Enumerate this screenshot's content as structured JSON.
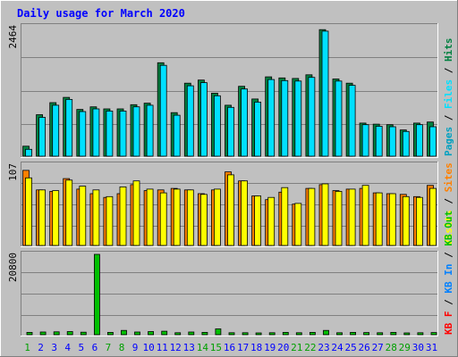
{
  "chart_data": [
    {
      "type": "bar",
      "title": "Daily usage for March 2020",
      "ylabel_parts": [
        "Pages",
        " / ",
        "Files",
        " / ",
        "Hits"
      ],
      "y_max_label": "2464",
      "ylim": [
        0,
        2464
      ],
      "categories": [
        "1",
        "2",
        "3",
        "4",
        "5",
        "6",
        "7",
        "8",
        "9",
        "10",
        "11",
        "12",
        "13",
        "14",
        "15",
        "16",
        "17",
        "18",
        "19",
        "20",
        "21",
        "22",
        "23",
        "24",
        "25",
        "26",
        "27",
        "28",
        "29",
        "30",
        "31"
      ],
      "series": [
        {
          "name": "Hits",
          "color": "#008040",
          "values": [
            190,
            790,
            1020,
            1120,
            890,
            940,
            900,
            900,
            980,
            1010,
            1780,
            830,
            1390,
            1450,
            1200,
            970,
            1330,
            1090,
            1510,
            1490,
            1480,
            1550,
            2410,
            1470,
            1390,
            630,
            610,
            600,
            500,
            630,
            650
          ]
        },
        {
          "name": "Files",
          "color": "#00E0FF",
          "values": [
            130,
            740,
            970,
            1080,
            850,
            900,
            860,
            860,
            940,
            970,
            1730,
            780,
            1340,
            1400,
            1150,
            930,
            1280,
            1030,
            1460,
            1440,
            1430,
            1500,
            2380,
            1430,
            1350,
            600,
            570,
            560,
            470,
            600,
            560
          ]
        }
      ]
    },
    {
      "type": "bar",
      "ylabel_parts": [
        "Visits",
        " / ",
        "Sites"
      ],
      "y_max_label": "107",
      "ylim": [
        0,
        107
      ],
      "series": [
        {
          "name": "Visits",
          "color": "#FF8000",
          "values": [
            100,
            74,
            72,
            89,
            75,
            69,
            64,
            69,
            81,
            73,
            74,
            76,
            74,
            69,
            74,
            98,
            86,
            66,
            61,
            71,
            55,
            76,
            81,
            73,
            75,
            76,
            70,
            69,
            68,
            65,
            80
          ]
        },
        {
          "name": "Sites",
          "color": "#FFFF00",
          "values": [
            90,
            74,
            73,
            87,
            79,
            74,
            65,
            78,
            86,
            75,
            70,
            75,
            74,
            68,
            75,
            94,
            86,
            66,
            64,
            77,
            56,
            76,
            82,
            72,
            75,
            80,
            70,
            69,
            65,
            64,
            76
          ]
        }
      ]
    },
    {
      "type": "bar",
      "ylabel_parts": [
        "KB F",
        " / ",
        "KB In",
        " / ",
        "KB Out"
      ],
      "y_max_label": "20800",
      "ylim": [
        0,
        20800
      ],
      "series": [
        {
          "name": "KB F",
          "color": "#FF0000",
          "values": [
            0,
            0,
            0,
            0,
            0,
            0,
            0,
            0,
            0,
            0,
            0,
            0,
            0,
            0,
            0,
            0,
            0,
            0,
            0,
            0,
            0,
            0,
            0,
            0,
            0,
            0,
            0,
            0,
            0,
            0,
            0
          ]
        },
        {
          "name": "KB In",
          "color": "#0080FF",
          "values": [
            0,
            0,
            0,
            0,
            0,
            0,
            0,
            0,
            0,
            0,
            0,
            0,
            0,
            0,
            0,
            0,
            0,
            0,
            0,
            0,
            0,
            0,
            0,
            0,
            0,
            0,
            0,
            0,
            0,
            0,
            0
          ]
        },
        {
          "name": "KB Out",
          "color": "#00C000",
          "values": [
            600,
            700,
            750,
            800,
            650,
            20800,
            600,
            1100,
            700,
            800,
            900,
            500,
            700,
            600,
            1500,
            500,
            500,
            400,
            500,
            600,
            500,
            600,
            1100,
            500,
            600,
            550,
            500,
            600,
            450,
            500,
            550
          ]
        }
      ]
    }
  ],
  "weekend_days": [
    "1",
    "7",
    "8",
    "14",
    "15",
    "21",
    "22",
    "28",
    "29"
  ],
  "colors": {
    "background": "#C0C0C0",
    "title": "#0000FF",
    "weekday": "#0000FF",
    "weekend": "#00A000",
    "hits": "#008040",
    "files": "#00E0FF",
    "pages": "#00A0C0",
    "visits": "#FF8000",
    "sites": "#FFFF00",
    "kbf": "#FF0000",
    "kbin": "#0080FF",
    "kbout": "#00C000"
  }
}
